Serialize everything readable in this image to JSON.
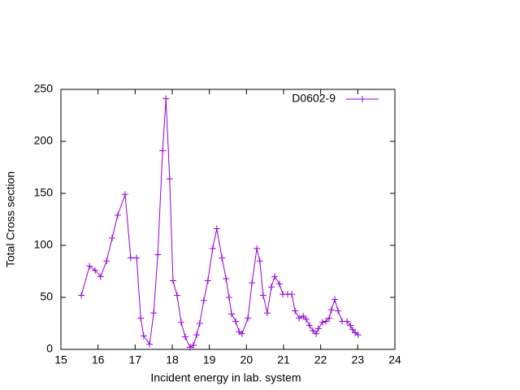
{
  "chart_data": {
    "type": "line",
    "xlabel": "Incident energy in lab. system",
    "ylabel": "Total Cross section",
    "xlim": [
      15,
      24
    ],
    "xticks": [
      15,
      16,
      17,
      18,
      19,
      20,
      21,
      22,
      23,
      24
    ],
    "ylim": [
      0,
      250
    ],
    "yticks": [
      0,
      50,
      100,
      150,
      200,
      250
    ],
    "legend": "top-right",
    "series": [
      {
        "name": "D0602-9",
        "color": "#9400d3",
        "x": [
          15.55,
          15.77,
          15.92,
          16.07,
          16.23,
          16.38,
          16.53,
          16.73,
          16.88,
          17.04,
          17.15,
          17.23,
          17.39,
          17.5,
          17.61,
          17.74,
          17.83,
          17.93,
          18.02,
          18.13,
          18.24,
          18.35,
          18.48,
          18.57,
          18.66,
          18.74,
          18.85,
          18.96,
          19.09,
          19.2,
          19.34,
          19.45,
          19.53,
          19.6,
          19.71,
          19.8,
          19.88,
          20.04,
          20.15,
          20.28,
          20.36,
          20.45,
          20.56,
          20.67,
          20.76,
          20.89,
          20.98,
          21.11,
          21.22,
          21.31,
          21.42,
          21.53,
          21.61,
          21.7,
          21.79,
          21.88,
          21.94,
          22.05,
          22.14,
          22.23,
          22.29,
          22.38,
          22.47,
          22.58,
          22.71,
          22.8,
          22.86,
          22.93,
          23.01
        ],
        "values": [
          52,
          80,
          76,
          70,
          85,
          107,
          129,
          149,
          88,
          88,
          30,
          13,
          5,
          35,
          91,
          191,
          241,
          164,
          66,
          52,
          26,
          12,
          2,
          4,
          14,
          25,
          47,
          66,
          97,
          116,
          88,
          68,
          50,
          34,
          27,
          17,
          15,
          30,
          64,
          97,
          85,
          52,
          35,
          60,
          70,
          63,
          53,
          53,
          53,
          37,
          30,
          32,
          29,
          23,
          18,
          15,
          20,
          26,
          27,
          30,
          38,
          48,
          37,
          27,
          27,
          23,
          19,
          16,
          14
        ]
      }
    ]
  }
}
